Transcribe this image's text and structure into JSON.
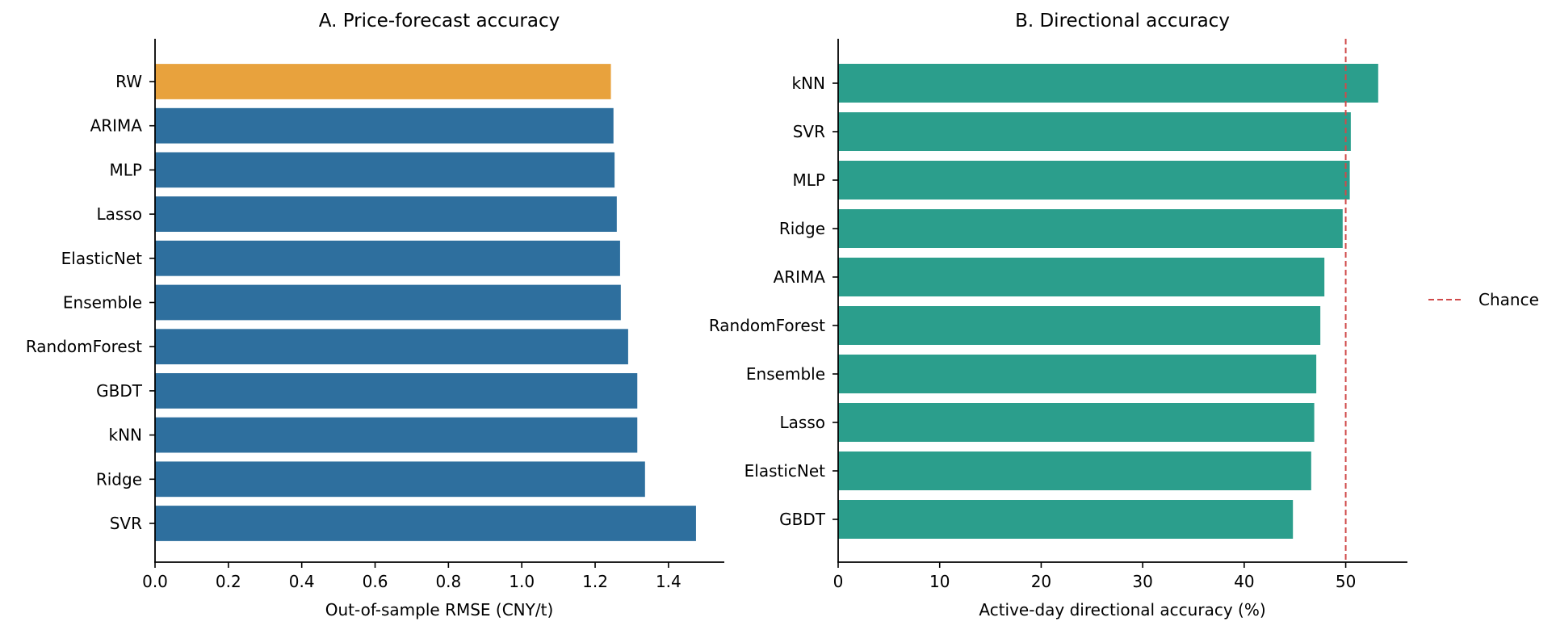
{
  "chart_data": [
    {
      "type": "bar",
      "orientation": "horizontal",
      "title": "A. Price-forecast accuracy",
      "xlabel": "Out-of-sample RMSE (CNY/t)",
      "ylabel": "",
      "categories": [
        "RW",
        "ARIMA",
        "MLP",
        "Lasso",
        "ElasticNet",
        "Ensemble",
        "RandomForest",
        "GBDT",
        "kNN",
        "Ridge",
        "SVR"
      ],
      "values": [
        1.243,
        1.25,
        1.253,
        1.259,
        1.268,
        1.27,
        1.29,
        1.315,
        1.315,
        1.336,
        1.475
      ],
      "highlight": "RW",
      "colors": {
        "bar": "#2e6f9e",
        "highlight": "#e8a23d"
      },
      "xlim": [
        0,
        1.55
      ],
      "xticks": [
        "0.0",
        "0.2",
        "0.4",
        "0.6",
        "0.8",
        "1.0",
        "1.2",
        "1.4"
      ],
      "grid": false
    },
    {
      "type": "bar",
      "orientation": "horizontal",
      "title": "B. Directional accuracy",
      "xlabel": "Active-day directional accuracy (%)",
      "ylabel": "",
      "categories": [
        "kNN",
        "SVR",
        "MLP",
        "Ridge",
        "ARIMA",
        "RandomForest",
        "Ensemble",
        "Lasso",
        "ElasticNet",
        "GBDT"
      ],
      "values": [
        53.2,
        50.5,
        50.4,
        49.7,
        47.9,
        47.5,
        47.1,
        46.9,
        46.6,
        44.8
      ],
      "colors": {
        "bar": "#2b9e8c",
        "reference": "#d04a4a"
      },
      "xlim": [
        0,
        56
      ],
      "xticks": [
        "0",
        "10",
        "20",
        "30",
        "40",
        "50"
      ],
      "reference_line": {
        "value": 50,
        "label": "Chance",
        "style": "dashed"
      },
      "legend": {
        "position": "right",
        "entries": [
          "Chance"
        ]
      },
      "grid": false
    }
  ]
}
